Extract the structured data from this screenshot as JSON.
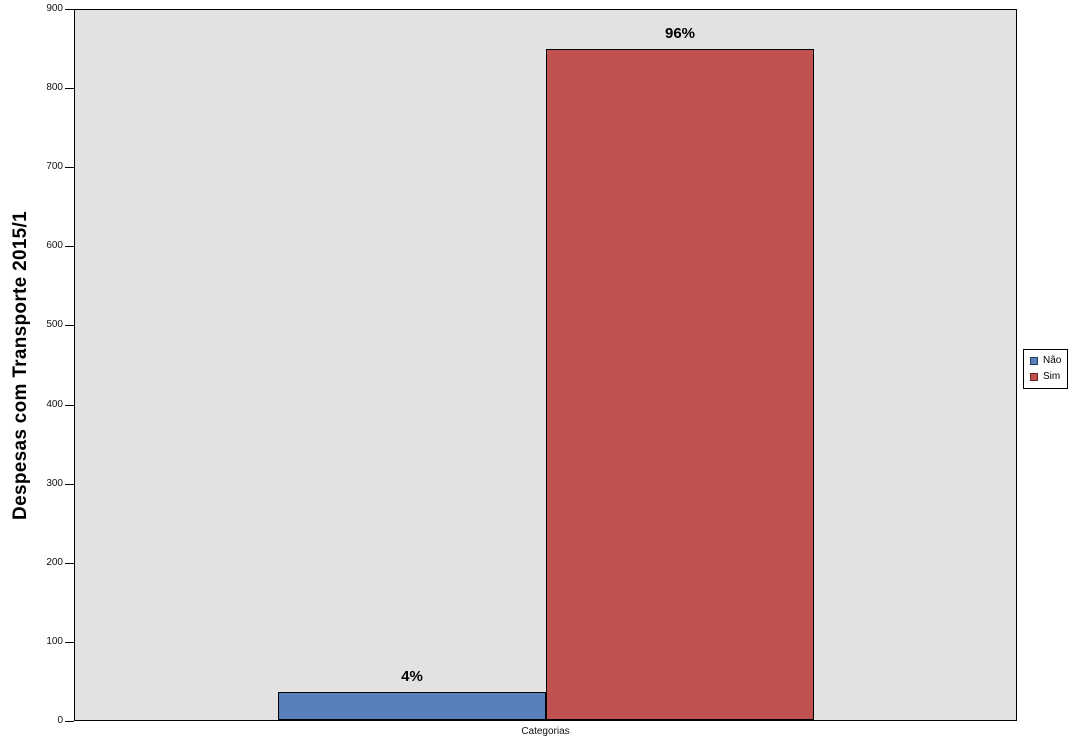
{
  "chart": {
    "y_axis_title": "Despesas com Transporte 2015/1",
    "x_axis_label": "Categorias"
  },
  "chart_data": {
    "type": "bar",
    "title": "",
    "ylabel": "Despesas com Transporte 2015/1",
    "xlabel": "Categorias",
    "ylim": [
      0,
      900
    ],
    "yticks": [
      0,
      100,
      200,
      300,
      400,
      500,
      600,
      700,
      800,
      900
    ],
    "grid": false,
    "legend_position": "right",
    "plot_background": "#e2e2e2",
    "bar_border_color": "#000000",
    "series": [
      {
        "name": "Não",
        "value": 35,
        "data_label": "4%",
        "color": "#5881bc",
        "swatch_border": "#1f3a5f"
      },
      {
        "name": "Sim",
        "value": 850,
        "data_label": "96%",
        "color": "#c05150",
        "swatch_border": "#632423"
      }
    ]
  }
}
